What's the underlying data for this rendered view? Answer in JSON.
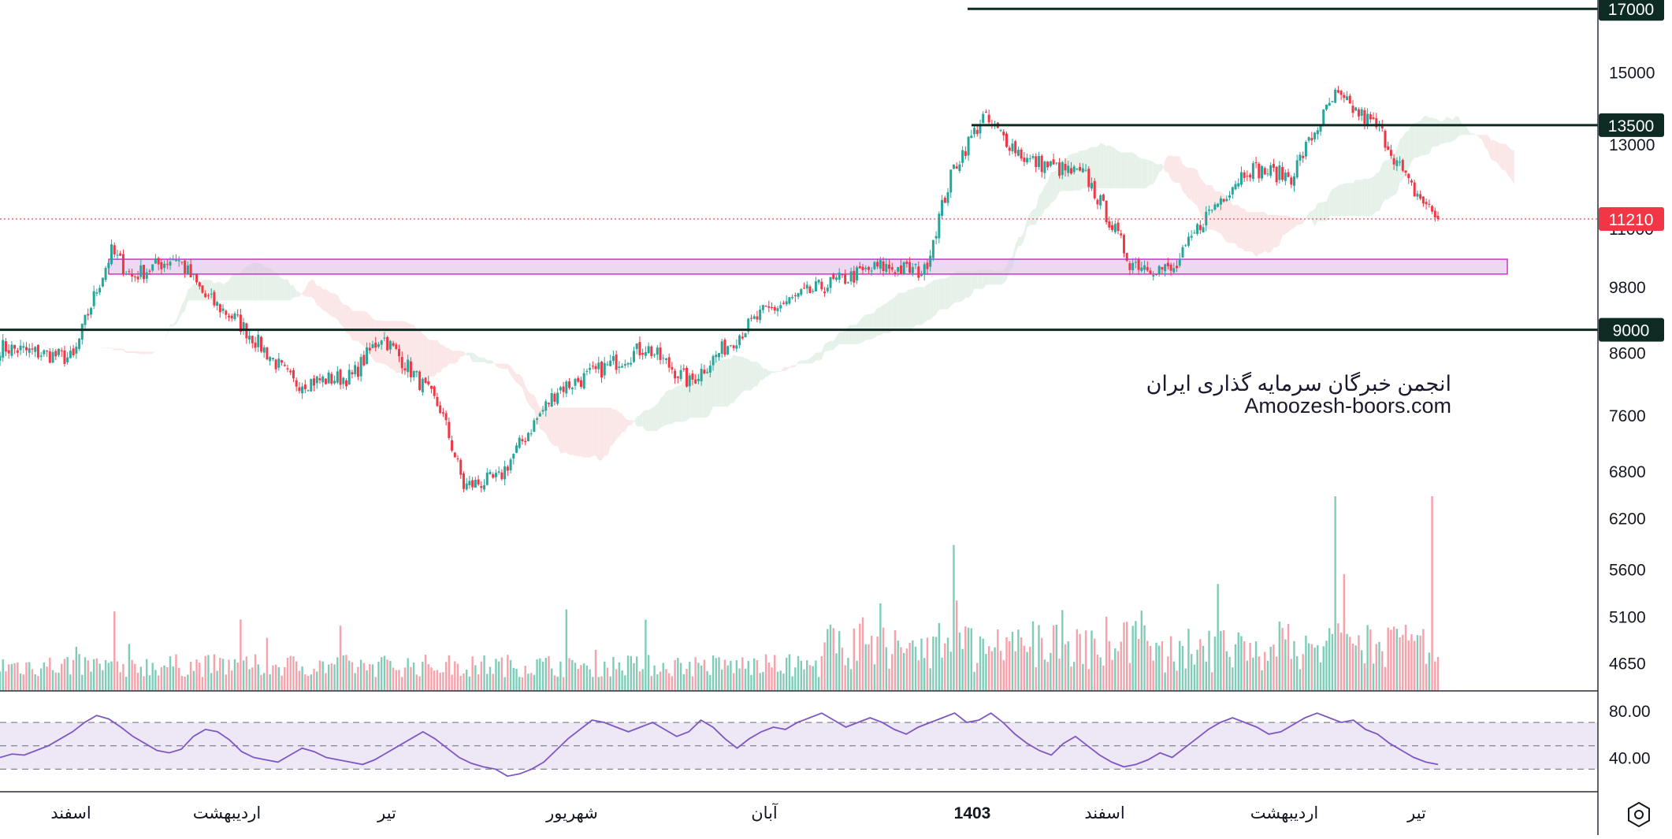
{
  "chart_data": {
    "type": "candlestick",
    "watermark": [
      "انجمن خبرگان سرمایه گذاری ایران",
      "Amoozesh-boors.com"
    ],
    "price_axis": {
      "ticks": [
        15000,
        13000,
        11000,
        9800,
        8600,
        7600,
        6800,
        6200,
        5600,
        5100,
        4650
      ],
      "visible_range": [
        4400,
        17300
      ],
      "scale": "log"
    },
    "horizontal_levels": [
      {
        "value": 17000,
        "label": "17000",
        "color": "#0d2b22"
      },
      {
        "value": 13500,
        "label": "13500",
        "color": "#0d2b22"
      },
      {
        "value": 9000,
        "label": "9000",
        "color": "#0d2b22"
      }
    ],
    "last_price": {
      "value": 11210,
      "label": "11210",
      "color": "#f23645"
    },
    "support_zone": {
      "low": 10050,
      "high": 10350,
      "color": "#cc33cc"
    },
    "time_axis": {
      "labels": [
        "اسفند",
        "اردیبهشت",
        "تیر",
        "شهریور",
        "آبان",
        "1403",
        "اسفند",
        "اردیبهشت",
        "تیر"
      ],
      "bold": [
        "1403"
      ]
    },
    "series": [
      {
        "name": "price",
        "description_points": [
          [
            0,
            8700
          ],
          [
            25,
            8500
          ],
          [
            30,
            9300
          ],
          [
            38,
            10500
          ],
          [
            45,
            10000
          ],
          [
            60,
            10400
          ],
          [
            70,
            9600
          ],
          [
            80,
            9200
          ],
          [
            100,
            8100
          ],
          [
            120,
            8200
          ],
          [
            130,
            8900
          ],
          [
            150,
            7700
          ],
          [
            158,
            6600
          ],
          [
            170,
            6700
          ],
          [
            190,
            8000
          ],
          [
            200,
            8200
          ],
          [
            220,
            8700
          ],
          [
            235,
            8100
          ],
          [
            245,
            8600
          ],
          [
            260,
            9300
          ],
          [
            280,
            9800
          ],
          [
            300,
            10200
          ],
          [
            315,
            10100
          ],
          [
            325,
            12400
          ],
          [
            335,
            13700
          ],
          [
            350,
            12600
          ],
          [
            370,
            12200
          ],
          [
            385,
            10300
          ],
          [
            400,
            10100
          ],
          [
            410,
            11200
          ],
          [
            425,
            12400
          ],
          [
            440,
            12200
          ],
          [
            455,
            14300
          ],
          [
            470,
            13400
          ],
          [
            480,
            12000
          ],
          [
            490,
            11210
          ]
        ]
      }
    ],
    "ichimoku_cloud": true,
    "volume_histogram": true,
    "rsi": {
      "ticks": [
        80.0,
        40.0
      ],
      "tick_labels": [
        "80.00",
        "40.00"
      ],
      "band": [
        30,
        70
      ],
      "midline": 50,
      "line_color": "#7e57c2",
      "values": [
        40,
        43,
        42,
        46,
        50,
        56,
        62,
        70,
        76,
        73,
        66,
        58,
        52,
        46,
        44,
        47,
        58,
        64,
        62,
        55,
        45,
        40,
        38,
        36,
        42,
        48,
        45,
        40,
        38,
        36,
        34,
        38,
        44,
        50,
        56,
        62,
        56,
        48,
        40,
        35,
        32,
        30,
        24,
        26,
        30,
        36,
        46,
        56,
        64,
        72,
        70,
        66,
        62,
        66,
        70,
        64,
        58,
        62,
        72,
        66,
        56,
        48,
        56,
        62,
        66,
        64,
        70,
        74,
        78,
        72,
        66,
        70,
        74,
        70,
        64,
        60,
        66,
        70,
        74,
        78,
        70,
        72,
        78,
        70,
        60,
        52,
        46,
        42,
        52,
        58,
        50,
        42,
        36,
        32,
        34,
        38,
        44,
        40,
        48,
        56,
        64,
        70,
        74,
        70,
        66,
        60,
        62,
        68,
        74,
        78,
        74,
        70,
        72,
        64,
        60,
        52,
        46,
        40,
        36,
        34
      ]
    },
    "colors": {
      "up": "#26a69a",
      "down": "#f23645",
      "cloud_bull": "#e6f2e9",
      "cloud_bear": "#fbe7e7",
      "rsi_band": "#ede7f6"
    }
  },
  "settings_icon": "settings-icon"
}
